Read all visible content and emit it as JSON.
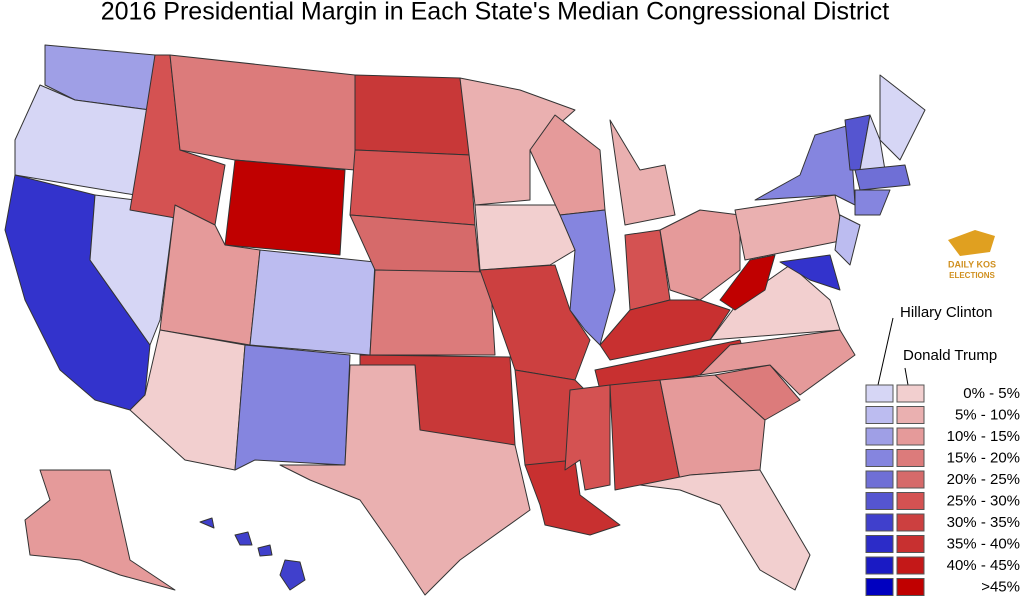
{
  "title": "2016 Presidential Margin in Each State's Median Congressional District",
  "logo": {
    "line1": "DAILY KOS",
    "line2": "ELECTIONS"
  },
  "legend": {
    "dem_heading": "Hillary Clinton",
    "rep_heading": "Donald Trump",
    "rows": [
      {
        "label": "0% -  5%",
        "dem_color": "#d6d6f5",
        "rep_color": "#f2cfcf"
      },
      {
        "label": "5% - 10%",
        "dem_color": "#bcbcf0",
        "rep_color": "#eab0b0"
      },
      {
        "label": "10% - 15%",
        "dem_color": "#9f9fe6",
        "rep_color": "#e59a9a"
      },
      {
        "label": "15% - 20%",
        "dem_color": "#8585df",
        "rep_color": "#dc7b7b"
      },
      {
        "label": "20% - 25%",
        "dem_color": "#6f6fd6",
        "rep_color": "#d66a6a"
      },
      {
        "label": "25% - 30%",
        "dem_color": "#5555d0",
        "rep_color": "#d45252"
      },
      {
        "label": "30% - 35%",
        "dem_color": "#4040cc",
        "rep_color": "#cc4040"
      },
      {
        "label": "35% - 40%",
        "dem_color": "#2c2cc8",
        "rep_color": "#c83030"
      },
      {
        "label": "40% - 45%",
        "dem_color": "#1a1ac4",
        "rep_color": "#c41818"
      },
      {
        "label": ">45%",
        "dem_color": "#0000c0",
        "rep_color": "#c00000"
      }
    ]
  }
}
